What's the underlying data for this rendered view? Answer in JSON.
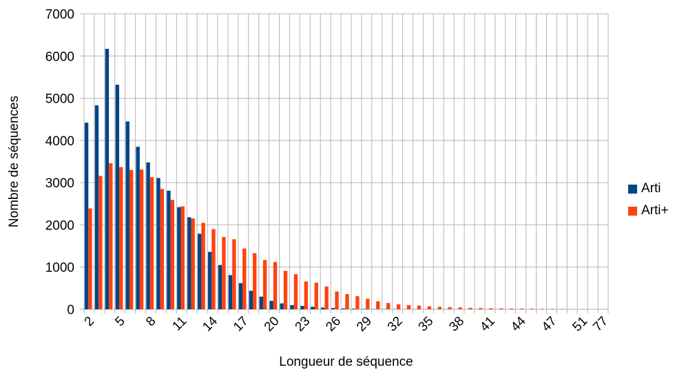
{
  "chart_data": {
    "type": "bar",
    "title": "",
    "xlabel": "Longueur de séquence",
    "ylabel": "Nombre de séquences",
    "ylim": [
      0,
      7000
    ],
    "yticks": [
      0,
      1000,
      2000,
      3000,
      4000,
      5000,
      6000,
      7000
    ],
    "grid": true,
    "legend_position": "right",
    "categories": [
      "2",
      "3",
      "4",
      "5",
      "6",
      "7",
      "8",
      "9",
      "10",
      "11",
      "12",
      "13",
      "14",
      "15",
      "16",
      "17",
      "18",
      "19",
      "20",
      "21",
      "22",
      "23",
      "24",
      "25",
      "26",
      "27",
      "28",
      "29",
      "30",
      "31",
      "32",
      "33",
      "34",
      "35",
      "36",
      "37",
      "38",
      "39",
      "40",
      "41",
      "42",
      "43",
      "44",
      "45",
      "46",
      "47",
      "48",
      "49",
      "51",
      "52",
      "77"
    ],
    "x_tick_labels": [
      "2",
      "5",
      "8",
      "11",
      "14",
      "17",
      "20",
      "23",
      "26",
      "29",
      "32",
      "35",
      "38",
      "41",
      "44",
      "47",
      "51",
      "77"
    ],
    "series": [
      {
        "name": "Arti",
        "color": "#004586",
        "values": [
          4420,
          4830,
          6170,
          5320,
          4450,
          3850,
          3480,
          3110,
          2810,
          2420,
          2180,
          1790,
          1360,
          1050,
          810,
          620,
          440,
          300,
          200,
          140,
          100,
          80,
          60,
          40,
          30,
          20,
          15,
          10,
          8,
          6,
          5,
          4,
          3,
          3,
          2,
          2,
          2,
          1,
          1,
          1,
          1,
          1,
          1,
          1,
          1,
          1,
          1,
          1,
          1,
          1,
          1
        ]
      },
      {
        "name": "Arti+",
        "color": "#ff420e",
        "values": [
          2390,
          3160,
          3460,
          3370,
          3300,
          3310,
          3130,
          2850,
          2590,
          2440,
          2150,
          2050,
          1900,
          1710,
          1660,
          1440,
          1330,
          1170,
          1120,
          910,
          830,
          660,
          630,
          540,
          420,
          360,
          310,
          250,
          190,
          150,
          120,
          100,
          90,
          70,
          60,
          50,
          45,
          35,
          30,
          25,
          22,
          20,
          18,
          15,
          12,
          10,
          8,
          6,
          5,
          4,
          3
        ]
      }
    ]
  }
}
